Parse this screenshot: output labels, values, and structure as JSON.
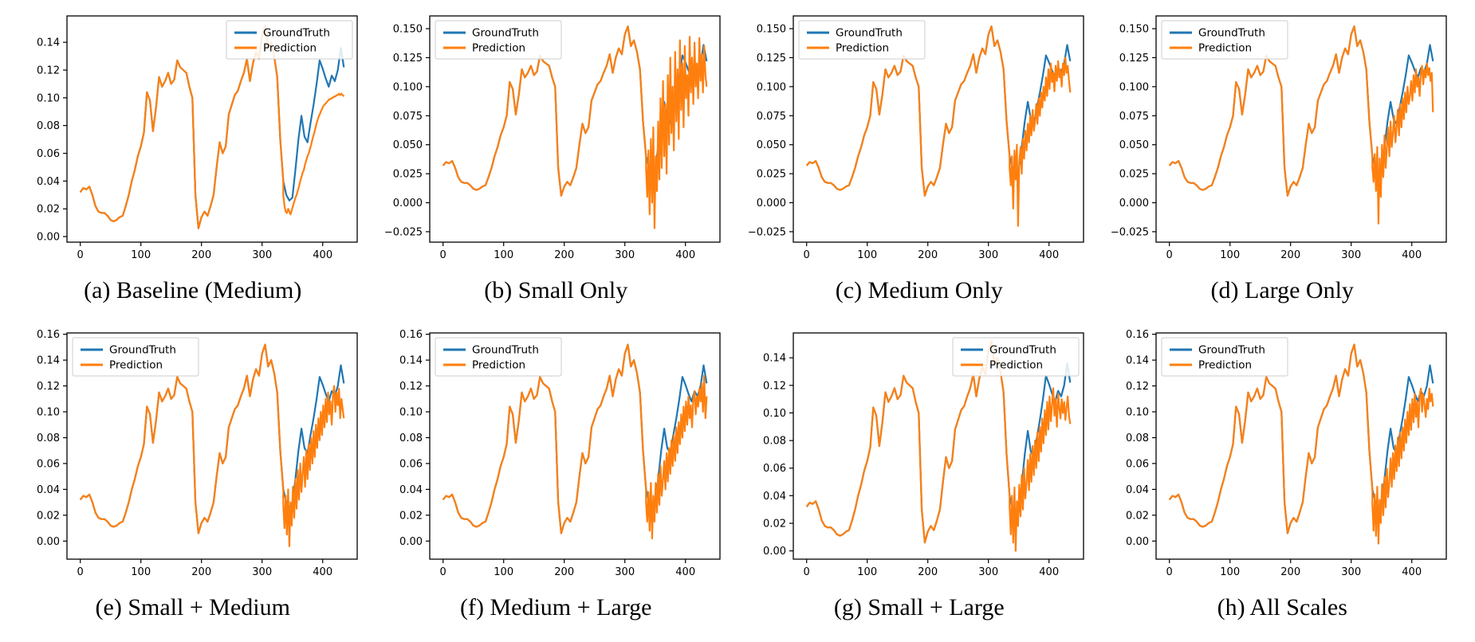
{
  "figure": {
    "background": "#ffffff"
  },
  "legend": {
    "groundtruth": "GroundTruth",
    "prediction": "Prediction"
  },
  "colors": {
    "groundtruth": "#1f77b4",
    "prediction": "#ff7f0e",
    "axis": "#000000",
    "legend_border": "#cccccc"
  },
  "chart_data": {
    "type": "line",
    "title": "",
    "xlabel": "",
    "ylabel": "",
    "grid": false,
    "xticks": [
      0,
      100,
      200,
      300,
      400
    ],
    "xlim": [
      -22,
      457
    ],
    "x": [
      0,
      5,
      10,
      15,
      20,
      25,
      30,
      35,
      40,
      45,
      50,
      55,
      60,
      65,
      70,
      75,
      80,
      85,
      90,
      95,
      100,
      105,
      110,
      115,
      120,
      125,
      130,
      135,
      140,
      145,
      150,
      155,
      160,
      165,
      170,
      175,
      180,
      185,
      190,
      195,
      200,
      205,
      210,
      215,
      220,
      225,
      230,
      235,
      240,
      245,
      250,
      255,
      260,
      265,
      270,
      275,
      280,
      285,
      290,
      295,
      300,
      305,
      310,
      315,
      320,
      325,
      330,
      335,
      340,
      345,
      350,
      355,
      360,
      365,
      370,
      375,
      380,
      385,
      390,
      395,
      400,
      405,
      410,
      415,
      420,
      425,
      430,
      435
    ],
    "ground_truth": [
      0.032,
      0.035,
      0.034,
      0.036,
      0.03,
      0.022,
      0.018,
      0.017,
      0.017,
      0.015,
      0.012,
      0.011,
      0.012,
      0.014,
      0.015,
      0.022,
      0.03,
      0.04,
      0.048,
      0.058,
      0.065,
      0.075,
      0.104,
      0.098,
      0.076,
      0.093,
      0.115,
      0.108,
      0.112,
      0.118,
      0.11,
      0.113,
      0.127,
      0.122,
      0.12,
      0.118,
      0.108,
      0.1,
      0.03,
      0.006,
      0.014,
      0.018,
      0.015,
      0.022,
      0.03,
      0.05,
      0.068,
      0.06,
      0.065,
      0.088,
      0.095,
      0.102,
      0.105,
      0.112,
      0.118,
      0.128,
      0.112,
      0.125,
      0.133,
      0.128,
      0.145,
      0.152,
      0.135,
      0.14,
      0.13,
      0.115,
      0.07,
      0.04,
      0.03,
      0.026,
      0.028,
      0.048,
      0.07,
      0.087,
      0.072,
      0.068,
      0.082,
      0.095,
      0.11,
      0.127,
      0.121,
      0.114,
      0.108,
      0.116,
      0.112,
      0.12,
      0.136,
      0.122
    ],
    "forecast_split_x": 335,
    "forecast_x": [
      335,
      337,
      339,
      341,
      343,
      345,
      347,
      349,
      351,
      353,
      355,
      357,
      359,
      361,
      363,
      365,
      367,
      369,
      371,
      373,
      375,
      377,
      379,
      381,
      383,
      385,
      387,
      389,
      391,
      393,
      395,
      397,
      399,
      401,
      403,
      405,
      407,
      409,
      411,
      413,
      415,
      417,
      419,
      421,
      423,
      425,
      427,
      429,
      431,
      433,
      435
    ],
    "charts": [
      {
        "id": "a",
        "caption": "(a) Baseline (Medium)",
        "legend_position": "top-right",
        "ylim": [
          -0.004,
          0.159
        ],
        "yticks": [
          0,
          0.02,
          0.04,
          0.06,
          0.08,
          0.1,
          0.12,
          0.14
        ],
        "ytick_labels": [
          "0.00",
          "0.02",
          "0.04",
          "0.06",
          "0.08",
          "0.10",
          "0.12",
          "0.14"
        ],
        "prediction_forecast": [
          0.03,
          0.022,
          0.018,
          0.017,
          0.02,
          0.018,
          0.016,
          0.019,
          0.022,
          0.025,
          0.028,
          0.03,
          0.033,
          0.036,
          0.04,
          0.043,
          0.046,
          0.048,
          0.052,
          0.055,
          0.058,
          0.06,
          0.063,
          0.066,
          0.07,
          0.073,
          0.076,
          0.08,
          0.083,
          0.086,
          0.088,
          0.09,
          0.092,
          0.094,
          0.095,
          0.096,
          0.097,
          0.098,
          0.099,
          0.099,
          0.1,
          0.1,
          0.101,
          0.101,
          0.102,
          0.102,
          0.103,
          0.102,
          0.103,
          0.102,
          0.101
        ]
      },
      {
        "id": "b",
        "caption": "(b) Small Only",
        "legend_position": "top-left",
        "ylim": [
          -0.034,
          0.161
        ],
        "yticks": [
          -0.025,
          0,
          0.025,
          0.05,
          0.075,
          0.1,
          0.125,
          0.15
        ],
        "ytick_labels": [
          "−0.025",
          "0.000",
          "0.025",
          "0.050",
          "0.075",
          "0.100",
          "0.125",
          "0.150"
        ],
        "prediction_forecast": [
          0.03,
          0.005,
          0.045,
          -0.01,
          0.055,
          0.0,
          0.065,
          -0.022,
          0.04,
          0.01,
          0.07,
          0.02,
          0.09,
          0.03,
          0.105,
          0.04,
          0.085,
          0.025,
          0.11,
          0.05,
          0.125,
          0.06,
          0.1,
          0.045,
          0.13,
          0.07,
          0.115,
          0.055,
          0.14,
          0.08,
          0.12,
          0.065,
          0.135,
          0.09,
          0.11,
          0.075,
          0.143,
          0.095,
          0.125,
          0.085,
          0.138,
          0.1,
          0.12,
          0.09,
          0.142,
          0.105,
          0.128,
          0.095,
          0.135,
          0.11,
          0.1
        ]
      },
      {
        "id": "c",
        "caption": "(c) Medium Only",
        "legend_position": "top-left",
        "ylim": [
          -0.034,
          0.161
        ],
        "yticks": [
          -0.025,
          0,
          0.025,
          0.05,
          0.075,
          0.1,
          0.125,
          0.15
        ],
        "ytick_labels": [
          "−0.025",
          "0.000",
          "0.025",
          "0.050",
          "0.075",
          "0.100",
          "0.125",
          "0.150"
        ],
        "prediction_forecast": [
          0.03,
          0.015,
          0.04,
          -0.005,
          0.045,
          0.02,
          0.05,
          -0.02,
          0.035,
          0.048,
          0.025,
          0.055,
          0.038,
          0.062,
          0.045,
          0.068,
          0.052,
          0.075,
          0.058,
          0.08,
          0.062,
          0.07,
          0.085,
          0.068,
          0.09,
          0.075,
          0.095,
          0.082,
          0.1,
          0.088,
          0.108,
          0.092,
          0.115,
          0.098,
          0.12,
          0.104,
          0.112,
          0.096,
          0.118,
          0.105,
          0.122,
          0.108,
          0.115,
          0.1,
          0.12,
          0.11,
          0.125,
          0.112,
          0.118,
          0.105,
          0.095
        ]
      },
      {
        "id": "d",
        "caption": "(d) Large Only",
        "legend_position": "top-left",
        "ylim": [
          -0.034,
          0.161
        ],
        "yticks": [
          -0.025,
          0,
          0.025,
          0.05,
          0.075,
          0.1,
          0.125,
          0.15
        ],
        "ytick_labels": [
          "−0.025",
          "0.000",
          "0.025",
          "0.050",
          "0.075",
          "0.100",
          "0.125",
          "0.150"
        ],
        "prediction_forecast": [
          0.03,
          0.018,
          0.042,
          0.01,
          0.048,
          -0.018,
          0.038,
          0.005,
          0.05,
          0.022,
          0.058,
          0.03,
          0.048,
          0.065,
          0.04,
          0.07,
          0.048,
          0.06,
          0.075,
          0.052,
          0.065,
          0.08,
          0.058,
          0.085,
          0.065,
          0.09,
          0.072,
          0.095,
          0.078,
          0.1,
          0.085,
          0.092,
          0.105,
          0.088,
          0.11,
          0.095,
          0.115,
          0.1,
          0.108,
          0.092,
          0.112,
          0.118,
          0.102,
          0.115,
          0.108,
          0.12,
          0.11,
          0.116,
          0.105,
          0.112,
          0.078
        ]
      },
      {
        "id": "e",
        "caption": "(e) Small + Medium",
        "legend_position": "top-left",
        "ylim": [
          -0.014,
          0.161
        ],
        "yticks": [
          0,
          0.02,
          0.04,
          0.06,
          0.08,
          0.1,
          0.12,
          0.14,
          0.16
        ],
        "ytick_labels": [
          "0.00",
          "0.02",
          "0.04",
          "0.06",
          "0.08",
          "0.10",
          "0.12",
          "0.14",
          "0.16"
        ],
        "prediction_forecast": [
          0.028,
          0.01,
          0.035,
          0.005,
          0.04,
          -0.004,
          0.03,
          0.012,
          0.042,
          0.018,
          0.048,
          0.025,
          0.055,
          0.032,
          0.06,
          0.038,
          0.052,
          0.065,
          0.042,
          0.07,
          0.048,
          0.075,
          0.055,
          0.08,
          0.06,
          0.085,
          0.065,
          0.09,
          0.072,
          0.095,
          0.078,
          0.1,
          0.082,
          0.105,
          0.088,
          0.11,
          0.092,
          0.115,
          0.098,
          0.108,
          0.09,
          0.112,
          0.12,
          0.1,
          0.115,
          0.105,
          0.118,
          0.095,
          0.11,
          0.102,
          0.095
        ]
      },
      {
        "id": "f",
        "caption": "(f) Medium + Large",
        "legend_position": "top-left",
        "ylim": [
          -0.014,
          0.161
        ],
        "yticks": [
          0,
          0.02,
          0.04,
          0.06,
          0.08,
          0.1,
          0.12,
          0.14,
          0.16
        ],
        "ytick_labels": [
          "0.00",
          "0.02",
          "0.04",
          "0.06",
          "0.08",
          "0.10",
          "0.12",
          "0.14",
          "0.16"
        ],
        "prediction_forecast": [
          0.03,
          0.015,
          0.038,
          0.008,
          0.045,
          0.002,
          0.035,
          0.015,
          0.045,
          0.022,
          0.052,
          0.028,
          0.058,
          0.035,
          0.048,
          0.062,
          0.04,
          0.068,
          0.046,
          0.072,
          0.052,
          0.078,
          0.058,
          0.082,
          0.062,
          0.088,
          0.068,
          0.092,
          0.075,
          0.098,
          0.08,
          0.104,
          0.085,
          0.108,
          0.09,
          0.112,
          0.095,
          0.105,
          0.088,
          0.11,
          0.116,
          0.098,
          0.112,
          0.104,
          0.118,
          0.108,
          0.122,
          0.1,
          0.128,
          0.095,
          0.112
        ]
      },
      {
        "id": "g",
        "caption": "(g) Small + Large",
        "legend_position": "top-right",
        "ylim": [
          -0.006,
          0.158
        ],
        "yticks": [
          0,
          0.02,
          0.04,
          0.06,
          0.08,
          0.1,
          0.12,
          0.14
        ],
        "ytick_labels": [
          "0.00",
          "0.02",
          "0.04",
          "0.06",
          "0.08",
          "0.10",
          "0.12",
          "0.14"
        ],
        "prediction_forecast": [
          0.032,
          0.012,
          0.04,
          0.006,
          0.046,
          0.0,
          0.036,
          0.018,
          0.048,
          0.025,
          0.055,
          0.03,
          0.06,
          0.038,
          0.05,
          0.066,
          0.044,
          0.07,
          0.05,
          0.076,
          0.055,
          0.08,
          0.06,
          0.086,
          0.065,
          0.09,
          0.072,
          0.096,
          0.078,
          0.102,
          0.084,
          0.108,
          0.088,
          0.112,
          0.094,
          0.106,
          0.118,
          0.098,
          0.11,
          0.09,
          0.114,
          0.104,
          0.096,
          0.11,
          0.1,
          0.108,
          0.095,
          0.104,
          0.112,
          0.098,
          0.092
        ]
      },
      {
        "id": "h",
        "caption": "(h) All Scales",
        "legend_position": "top-left",
        "ylim": [
          -0.014,
          0.161
        ],
        "yticks": [
          0,
          0.02,
          0.04,
          0.06,
          0.08,
          0.1,
          0.12,
          0.14,
          0.16
        ],
        "ytick_labels": [
          "0.00",
          "0.02",
          "0.04",
          "0.06",
          "0.08",
          "0.10",
          "0.12",
          "0.14",
          "0.16"
        ],
        "prediction_forecast": [
          0.028,
          0.008,
          0.036,
          0.004,
          0.042,
          -0.002,
          0.032,
          0.014,
          0.044,
          0.02,
          0.05,
          0.026,
          0.056,
          0.034,
          0.046,
          0.064,
          0.042,
          0.068,
          0.048,
          0.074,
          0.054,
          0.08,
          0.058,
          0.084,
          0.064,
          0.088,
          0.07,
          0.094,
          0.076,
          0.1,
          0.082,
          0.106,
          0.086,
          0.11,
          0.092,
          0.114,
          0.096,
          0.108,
          0.088,
          0.112,
          0.118,
          0.1,
          0.114,
          0.106,
          0.096,
          0.11,
          0.102,
          0.118,
          0.108,
          0.114,
          0.104
        ]
      }
    ]
  }
}
